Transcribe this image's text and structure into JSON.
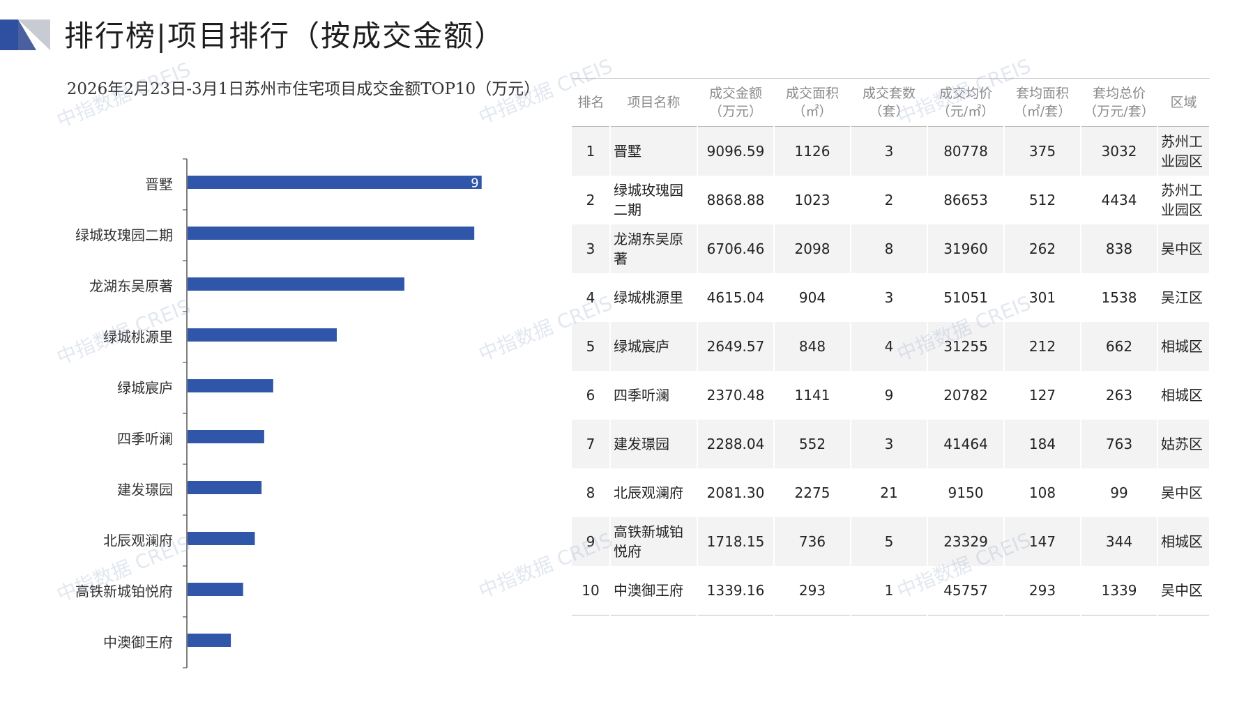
{
  "header": {
    "title": "排行榜|项目排行（按成交金额）"
  },
  "watermark": "中指数据 CREIS",
  "chart_data": {
    "type": "bar",
    "orientation": "horizontal",
    "title": "2026年2月23日-3月1日苏州市住宅项目成交金额TOP10（万元）",
    "categories": [
      "晋墅",
      "绿城玫瑰园二期",
      "龙湖东吴原著",
      "绿城桃源里",
      "绿城宸庐",
      "四季听澜",
      "建发璟园",
      "北辰观澜府",
      "高铁新城铂悦府",
      "中澳御王府"
    ],
    "values": [
      9096.59,
      8868.88,
      6706.46,
      4615.04,
      2649.57,
      2370.48,
      2288.04,
      2081.3,
      1718.15,
      1339.16
    ],
    "xlim": [
      0,
      11000
    ],
    "data_label": "9",
    "color": "#2f56a8",
    "grid": false
  },
  "table": {
    "headers": [
      [
        "排名"
      ],
      [
        "项目名称"
      ],
      [
        "成交金额",
        "（万元）"
      ],
      [
        "成交面积",
        "（㎡）"
      ],
      [
        "成交套数",
        "（套）"
      ],
      [
        "成交均价",
        "（元/㎡）"
      ],
      [
        "套均面积",
        "（㎡/套）"
      ],
      [
        "套均总价",
        "（万元/套）"
      ],
      [
        "区域"
      ]
    ],
    "rows": [
      [
        "1",
        "晋墅",
        "9096.59",
        "1126",
        "3",
        "80778",
        "375",
        "3032",
        "苏州工业园区"
      ],
      [
        "2",
        "绿城玫瑰园二期",
        "8868.88",
        "1023",
        "2",
        "86653",
        "512",
        "4434",
        "苏州工业园区"
      ],
      [
        "3",
        "龙湖东吴原著",
        "6706.46",
        "2098",
        "8",
        "31960",
        "262",
        "838",
        "吴中区"
      ],
      [
        "4",
        "绿城桃源里",
        "4615.04",
        "904",
        "3",
        "51051",
        "301",
        "1538",
        "吴江区"
      ],
      [
        "5",
        "绿城宸庐",
        "2649.57",
        "848",
        "4",
        "31255",
        "212",
        "662",
        "相城区"
      ],
      [
        "6",
        "四季听澜",
        "2370.48",
        "1141",
        "9",
        "20782",
        "127",
        "263",
        "相城区"
      ],
      [
        "7",
        "建发璟园",
        "2288.04",
        "552",
        "3",
        "41464",
        "184",
        "763",
        "姑苏区"
      ],
      [
        "8",
        "北辰观澜府",
        "2081.30",
        "2275",
        "21",
        "9150",
        "108",
        "99",
        "吴中区"
      ],
      [
        "9",
        "高铁新城铂悦府",
        "1718.15",
        "736",
        "5",
        "23329",
        "147",
        "344",
        "相城区"
      ],
      [
        "10",
        "中澳御王府",
        "1339.16",
        "293",
        "1",
        "45757",
        "293",
        "1339",
        "吴中区"
      ]
    ]
  }
}
